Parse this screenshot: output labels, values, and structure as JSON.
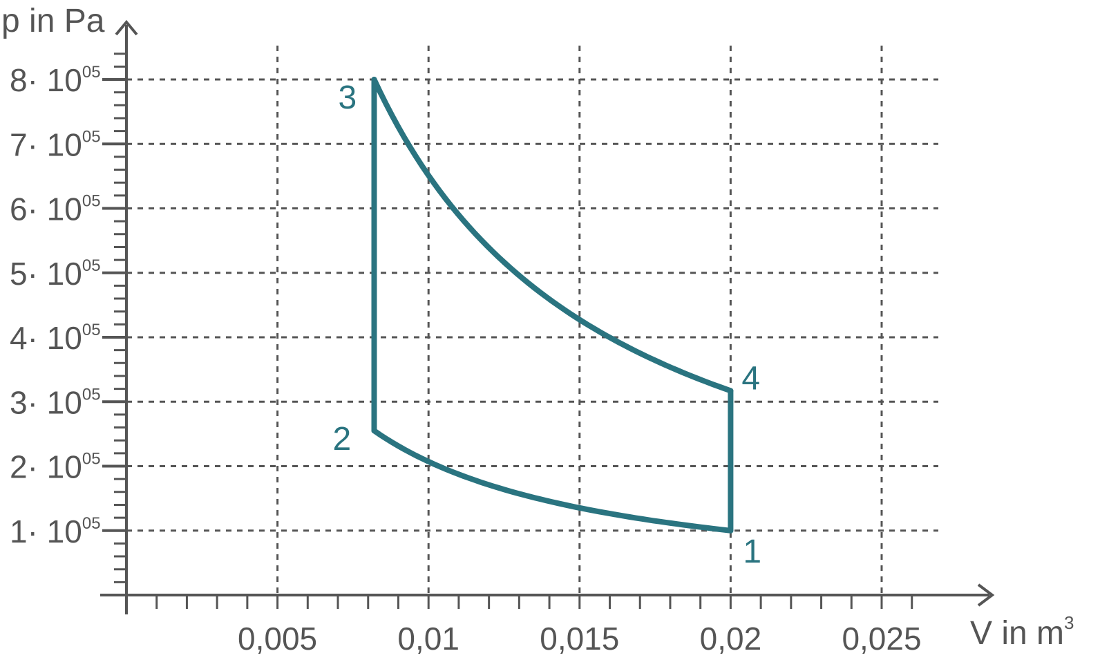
{
  "chart_data": {
    "type": "line",
    "xlabel": "V in m",
    "xlabel_sup": "3",
    "ylabel": "p in Pa",
    "xlim": [
      0,
      0.0272
    ],
    "ylim": [
      0,
      800000
    ],
    "grid": true,
    "x_ticks": [
      {
        "value": 0.005,
        "label": "0,005"
      },
      {
        "value": 0.01,
        "label": "0,01"
      },
      {
        "value": 0.015,
        "label": "0,015"
      },
      {
        "value": 0.02,
        "label": "0,02"
      },
      {
        "value": 0.025,
        "label": "0,025"
      }
    ],
    "y_ticks": [
      {
        "value": 100000,
        "label": "1· 10",
        "sup": "05"
      },
      {
        "value": 200000,
        "label": "2· 10",
        "sup": "05"
      },
      {
        "value": 300000,
        "label": "3· 10",
        "sup": "05"
      },
      {
        "value": 400000,
        "label": "4· 10",
        "sup": "05"
      },
      {
        "value": 500000,
        "label": "5· 10",
        "sup": "05"
      },
      {
        "value": 600000,
        "label": "6· 10",
        "sup": "05"
      },
      {
        "value": 700000,
        "label": "7· 10",
        "sup": "05"
      },
      {
        "value": 800000,
        "label": "8· 10",
        "sup": "05"
      }
    ],
    "color": "#2a7480",
    "points": [
      {
        "label": "1",
        "x": 0.02,
        "y": 100000
      },
      {
        "label": "2",
        "x": 0.0082,
        "y": 255000
      },
      {
        "label": "3",
        "x": 0.0082,
        "y": 800000
      },
      {
        "label": "4",
        "x": 0.02,
        "y": 317000
      }
    ],
    "segments": [
      {
        "from": "1",
        "to": "2",
        "kind": "adiabatic"
      },
      {
        "from": "2",
        "to": "3",
        "kind": "isochoric"
      },
      {
        "from": "3",
        "to": "4",
        "kind": "adiabatic"
      },
      {
        "from": "4",
        "to": "1",
        "kind": "isochoric"
      }
    ]
  }
}
